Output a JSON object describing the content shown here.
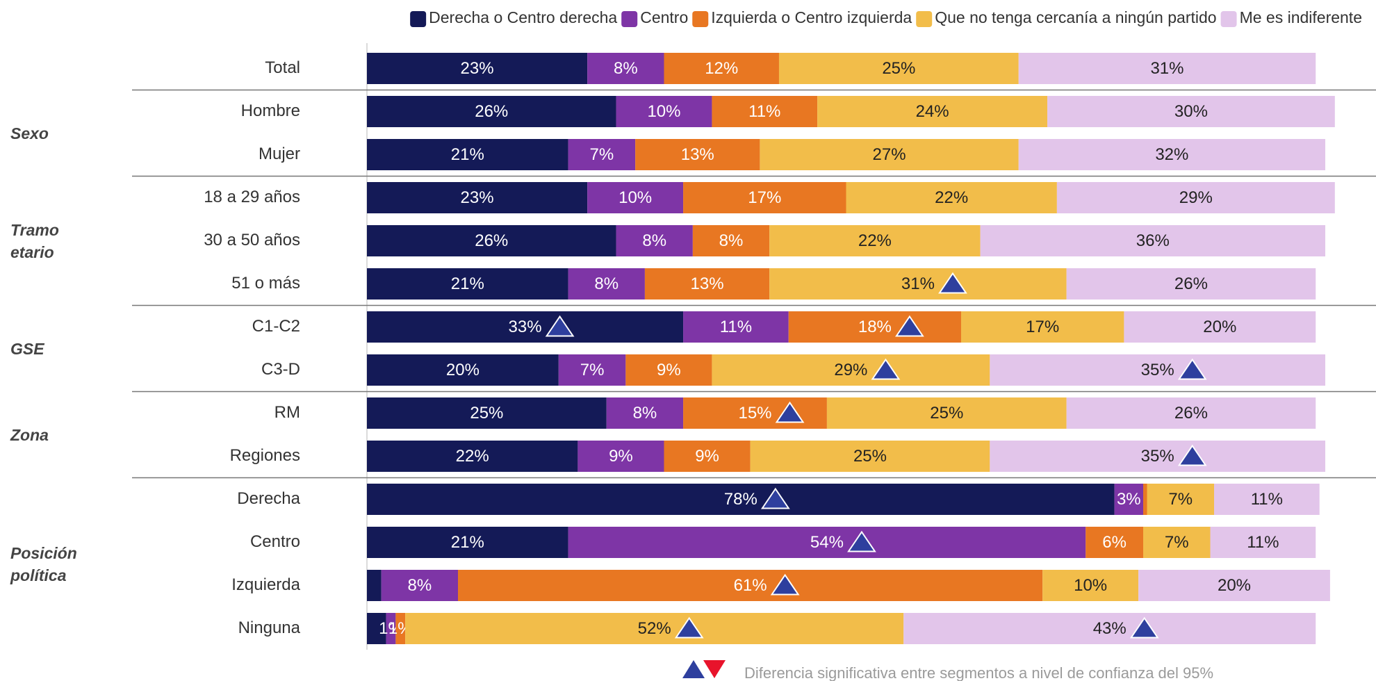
{
  "chart_data": {
    "type": "stacked_bar_horizontal",
    "categories": [
      "Total",
      "Hombre",
      "Mujer",
      "18 a 29 años",
      "30 a 50 años",
      "51 o más",
      "C1-C2",
      "C3-D",
      "RM",
      "Regiones",
      "Derecha",
      "Centro",
      "Izquierda",
      "Ninguna"
    ],
    "category_groups": [
      null,
      "Sexo",
      "Sexo",
      "Tramo etario",
      "Tramo etario",
      "Tramo etario",
      "GSE",
      "GSE",
      "Zona",
      "Zona",
      "Posición política",
      "Posición política",
      "Posición política",
      "Posición política"
    ],
    "xlim": [
      0,
      100
    ],
    "legend": "top-right",
    "footnote": "Diferencia significativa entre segmentos  a nivel de confianza del 95%",
    "series": [
      {
        "name": "Derecha o Centro derecha",
        "color": "#141a57",
        "label_color": "#ffffff",
        "values": [
          23,
          26,
          21,
          23,
          26,
          21,
          33,
          20,
          25,
          22,
          78,
          21,
          1.5,
          2
        ],
        "value_labels": [
          "23%",
          "26%",
          "21%",
          "23%",
          "26%",
          "21%",
          "33%",
          "20%",
          "25%",
          "22%",
          "78%",
          "21%",
          null,
          null
        ],
        "significance": [
          null,
          null,
          null,
          null,
          null,
          null,
          "up",
          null,
          null,
          null,
          "up",
          null,
          null,
          null
        ]
      },
      {
        "name": "Centro",
        "color": "#7e35a6",
        "label_color": "#ffffff",
        "values": [
          8,
          10,
          7,
          10,
          8,
          8,
          11,
          7,
          8,
          9,
          3,
          54,
          8,
          1
        ],
        "value_labels": [
          "8%",
          "10%",
          "7%",
          "10%",
          "8%",
          "8%",
          "11%",
          "7%",
          "8%",
          "9%",
          "3%",
          "54%",
          "8%",
          "1%"
        ],
        "significance": [
          null,
          null,
          null,
          null,
          null,
          null,
          null,
          null,
          null,
          null,
          null,
          "up",
          null,
          null
        ]
      },
      {
        "name": "Izquierda o Centro izquierda",
        "color": "#e87722",
        "label_color": "#ffffff",
        "values": [
          12,
          11,
          13,
          17,
          8,
          13,
          18,
          9,
          15,
          9,
          0.4,
          6,
          61,
          1
        ],
        "value_labels": [
          "12%",
          "11%",
          "13%",
          "17%",
          "8%",
          "13%",
          "18%",
          "9%",
          "15%",
          "9%",
          null,
          "6%",
          "61%",
          "1%"
        ],
        "significance": [
          null,
          null,
          null,
          null,
          null,
          null,
          "up",
          null,
          "up",
          null,
          null,
          null,
          "up",
          null
        ]
      },
      {
        "name": "Que no tenga cercanía a ningún partido",
        "color": "#f2bd4a",
        "label_color": "#222222",
        "values": [
          25,
          24,
          27,
          22,
          22,
          31,
          17,
          29,
          25,
          25,
          7,
          7,
          10,
          52
        ],
        "value_labels": [
          "25%",
          "24%",
          "27%",
          "22%",
          "22%",
          "31%",
          "17%",
          "29%",
          "25%",
          "25%",
          "7%",
          "7%",
          "10%",
          "52%"
        ],
        "significance": [
          null,
          null,
          null,
          null,
          null,
          "up",
          null,
          "up",
          null,
          null,
          null,
          null,
          null,
          "up"
        ]
      },
      {
        "name": "Me es indiferente",
        "color": "#e2c5ea",
        "label_color": "#222222",
        "values": [
          31,
          30,
          32,
          29,
          36,
          26,
          20,
          35,
          26,
          35,
          11,
          11,
          20,
          43
        ],
        "value_labels": [
          "31%",
          "30%",
          "32%",
          "29%",
          "36%",
          "26%",
          "20%",
          "35%",
          "26%",
          "35%",
          "11%",
          "11%",
          "20%",
          "43%"
        ],
        "significance": [
          null,
          null,
          null,
          null,
          null,
          null,
          null,
          "up",
          null,
          "up",
          null,
          null,
          null,
          "up"
        ]
      }
    ]
  }
}
